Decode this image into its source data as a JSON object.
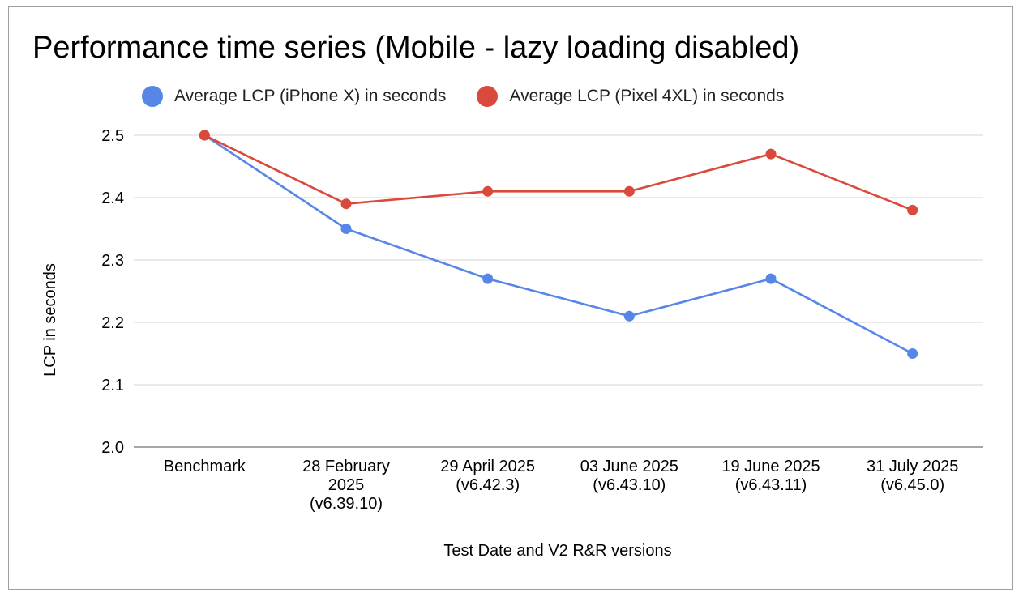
{
  "chart_data": {
    "type": "line",
    "title": "Performance time series (Mobile - lazy loading disabled)",
    "xlabel": "Test Date and V2 R&R versions",
    "ylabel": "LCP in seconds",
    "ylim": [
      2.0,
      2.5
    ],
    "yticks": [
      "2.0",
      "2.1",
      "2.2",
      "2.3",
      "2.4",
      "2.5"
    ],
    "grid": true,
    "legend_position": "top",
    "categories": [
      [
        "Benchmark"
      ],
      [
        "28 February",
        "2025",
        "(v6.39.10)"
      ],
      [
        "29 April 2025",
        "(v6.42.3)"
      ],
      [
        "03 June 2025",
        "(v6.43.10)"
      ],
      [
        "19 June 2025",
        "(v6.43.11)"
      ],
      [
        "31 July 2025",
        "(v6.45.0)"
      ]
    ],
    "series": [
      {
        "name": "Average LCP (iPhone X) in seconds",
        "color": "#5686e6",
        "values": [
          2.5,
          2.35,
          2.27,
          2.21,
          2.27,
          2.15
        ]
      },
      {
        "name": "Average LCP (Pixel 4XL) in seconds",
        "color": "#d94a3c",
        "values": [
          2.5,
          2.39,
          2.41,
          2.41,
          2.47,
          2.38
        ]
      }
    ]
  }
}
